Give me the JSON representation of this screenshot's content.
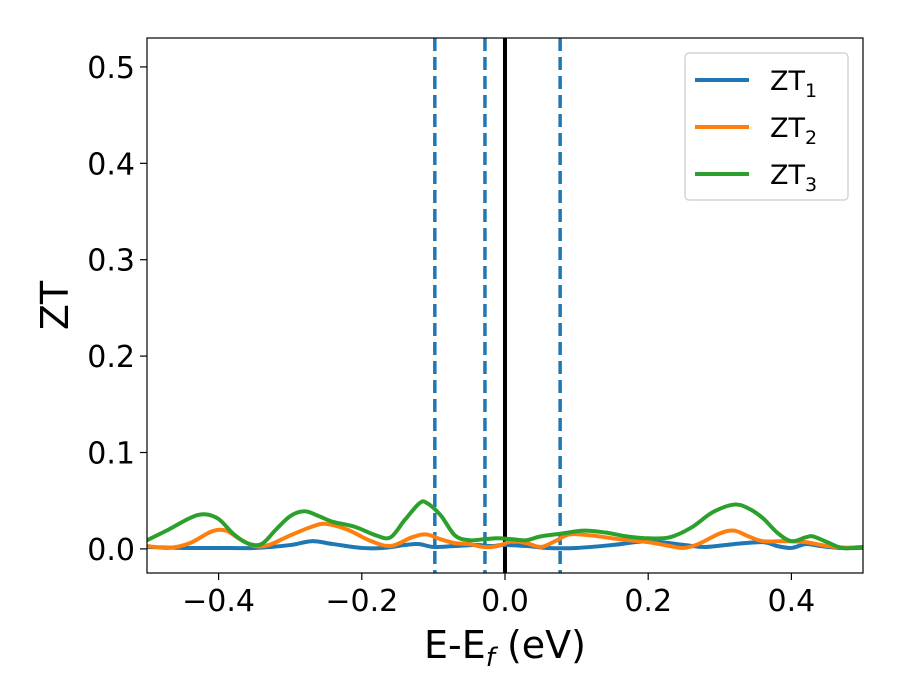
{
  "chart_data": {
    "type": "line",
    "xlabel": "E-E",
    "xlabel_sub": "f",
    "xlabel_unit": " (eV)",
    "ylabel": "ZT",
    "xlim": [
      -0.5,
      0.5
    ],
    "ylim": [
      -0.025,
      0.53
    ],
    "xticks": [
      -0.4,
      -0.2,
      0.0,
      0.2,
      0.4
    ],
    "xtick_labels": [
      "−0.4",
      "−0.2",
      "0.0",
      "0.2",
      "0.4"
    ],
    "yticks": [
      0.0,
      0.1,
      0.2,
      0.3,
      0.4,
      0.5
    ],
    "ytick_labels": [
      "0.0",
      "0.1",
      "0.2",
      "0.3",
      "0.4",
      "0.5"
    ],
    "grid": false,
    "legend_position": "top-right",
    "vertical_lines": [
      {
        "x": 0.0,
        "style": "solid",
        "color": "#000000"
      },
      {
        "x": -0.098,
        "style": "dashed",
        "color": "#1f77b4"
      },
      {
        "x": -0.028,
        "style": "dashed",
        "color": "#1f77b4"
      },
      {
        "x": 0.077,
        "style": "dashed",
        "color": "#1f77b4"
      }
    ],
    "series": [
      {
        "name": "ZT",
        "name_sub": "1",
        "color": "#1f77b4",
        "points": [
          [
            -0.5,
            0.002
          ],
          [
            -0.45,
            0.001
          ],
          [
            -0.4,
            0.001
          ],
          [
            -0.35,
            0.001
          ],
          [
            -0.3,
            0.004
          ],
          [
            -0.27,
            0.008
          ],
          [
            -0.24,
            0.005
          ],
          [
            -0.2,
            0.001
          ],
          [
            -0.17,
            0.001
          ],
          [
            -0.14,
            0.004
          ],
          [
            -0.12,
            0.005
          ],
          [
            -0.1,
            0.002
          ],
          [
            -0.07,
            0.003
          ],
          [
            -0.04,
            0.004
          ],
          [
            -0.02,
            0.003
          ],
          [
            0.0,
            0.004
          ],
          [
            0.03,
            0.003
          ],
          [
            0.06,
            0.001
          ],
          [
            0.1,
            0.001
          ],
          [
            0.15,
            0.004
          ],
          [
            0.2,
            0.008
          ],
          [
            0.25,
            0.004
          ],
          [
            0.28,
            0.002
          ],
          [
            0.32,
            0.005
          ],
          [
            0.36,
            0.007
          ],
          [
            0.38,
            0.003
          ],
          [
            0.4,
            0.001
          ],
          [
            0.42,
            0.005
          ],
          [
            0.44,
            0.003
          ],
          [
            0.47,
            0.001
          ],
          [
            0.5,
            0.002
          ]
        ]
      },
      {
        "name": "ZT",
        "name_sub": "2",
        "color": "#ff7f0e",
        "points": [
          [
            -0.5,
            0.003
          ],
          [
            -0.47,
            0.001
          ],
          [
            -0.44,
            0.006
          ],
          [
            -0.41,
            0.018
          ],
          [
            -0.39,
            0.019
          ],
          [
            -0.37,
            0.01
          ],
          [
            -0.35,
            0.003
          ],
          [
            -0.33,
            0.004
          ],
          [
            -0.3,
            0.014
          ],
          [
            -0.27,
            0.023
          ],
          [
            -0.25,
            0.026
          ],
          [
            -0.22,
            0.02
          ],
          [
            -0.19,
            0.009
          ],
          [
            -0.16,
            0.003
          ],
          [
            -0.13,
            0.012
          ],
          [
            -0.11,
            0.015
          ],
          [
            -0.09,
            0.01
          ],
          [
            -0.07,
            0.006
          ],
          [
            -0.05,
            0.005
          ],
          [
            -0.03,
            0.002
          ],
          [
            -0.01,
            0.003
          ],
          [
            0.01,
            0.008
          ],
          [
            0.03,
            0.006
          ],
          [
            0.05,
            0.002
          ],
          [
            0.07,
            0.008
          ],
          [
            0.09,
            0.015
          ],
          [
            0.12,
            0.014
          ],
          [
            0.16,
            0.01
          ],
          [
            0.2,
            0.007
          ],
          [
            0.23,
            0.003
          ],
          [
            0.25,
            0.001
          ],
          [
            0.27,
            0.005
          ],
          [
            0.3,
            0.016
          ],
          [
            0.32,
            0.019
          ],
          [
            0.34,
            0.013
          ],
          [
            0.36,
            0.008
          ],
          [
            0.39,
            0.008
          ],
          [
            0.42,
            0.007
          ],
          [
            0.45,
            0.003
          ],
          [
            0.48,
            0.001
          ],
          [
            0.5,
            0.001
          ]
        ]
      },
      {
        "name": "ZT",
        "name_sub": "3",
        "color": "#2ca02c",
        "points": [
          [
            -0.5,
            0.009
          ],
          [
            -0.47,
            0.02
          ],
          [
            -0.44,
            0.032
          ],
          [
            -0.42,
            0.036
          ],
          [
            -0.4,
            0.031
          ],
          [
            -0.38,
            0.016
          ],
          [
            -0.36,
            0.006
          ],
          [
            -0.34,
            0.005
          ],
          [
            -0.32,
            0.02
          ],
          [
            -0.3,
            0.034
          ],
          [
            -0.28,
            0.039
          ],
          [
            -0.26,
            0.034
          ],
          [
            -0.24,
            0.028
          ],
          [
            -0.21,
            0.023
          ],
          [
            -0.18,
            0.014
          ],
          [
            -0.16,
            0.012
          ],
          [
            -0.14,
            0.03
          ],
          [
            -0.12,
            0.047
          ],
          [
            -0.11,
            0.048
          ],
          [
            -0.09,
            0.035
          ],
          [
            -0.07,
            0.014
          ],
          [
            -0.05,
            0.009
          ],
          [
            -0.03,
            0.01
          ],
          [
            -0.01,
            0.011
          ],
          [
            0.01,
            0.01
          ],
          [
            0.03,
            0.009
          ],
          [
            0.05,
            0.013
          ],
          [
            0.08,
            0.016
          ],
          [
            0.11,
            0.019
          ],
          [
            0.14,
            0.017
          ],
          [
            0.17,
            0.013
          ],
          [
            0.2,
            0.011
          ],
          [
            0.23,
            0.012
          ],
          [
            0.26,
            0.022
          ],
          [
            0.29,
            0.038
          ],
          [
            0.32,
            0.046
          ],
          [
            0.34,
            0.042
          ],
          [
            0.36,
            0.032
          ],
          [
            0.38,
            0.017
          ],
          [
            0.4,
            0.008
          ],
          [
            0.42,
            0.012
          ],
          [
            0.43,
            0.013
          ],
          [
            0.45,
            0.007
          ],
          [
            0.47,
            0.001
          ],
          [
            0.49,
            0.001
          ],
          [
            0.5,
            0.001
          ]
        ]
      }
    ]
  }
}
